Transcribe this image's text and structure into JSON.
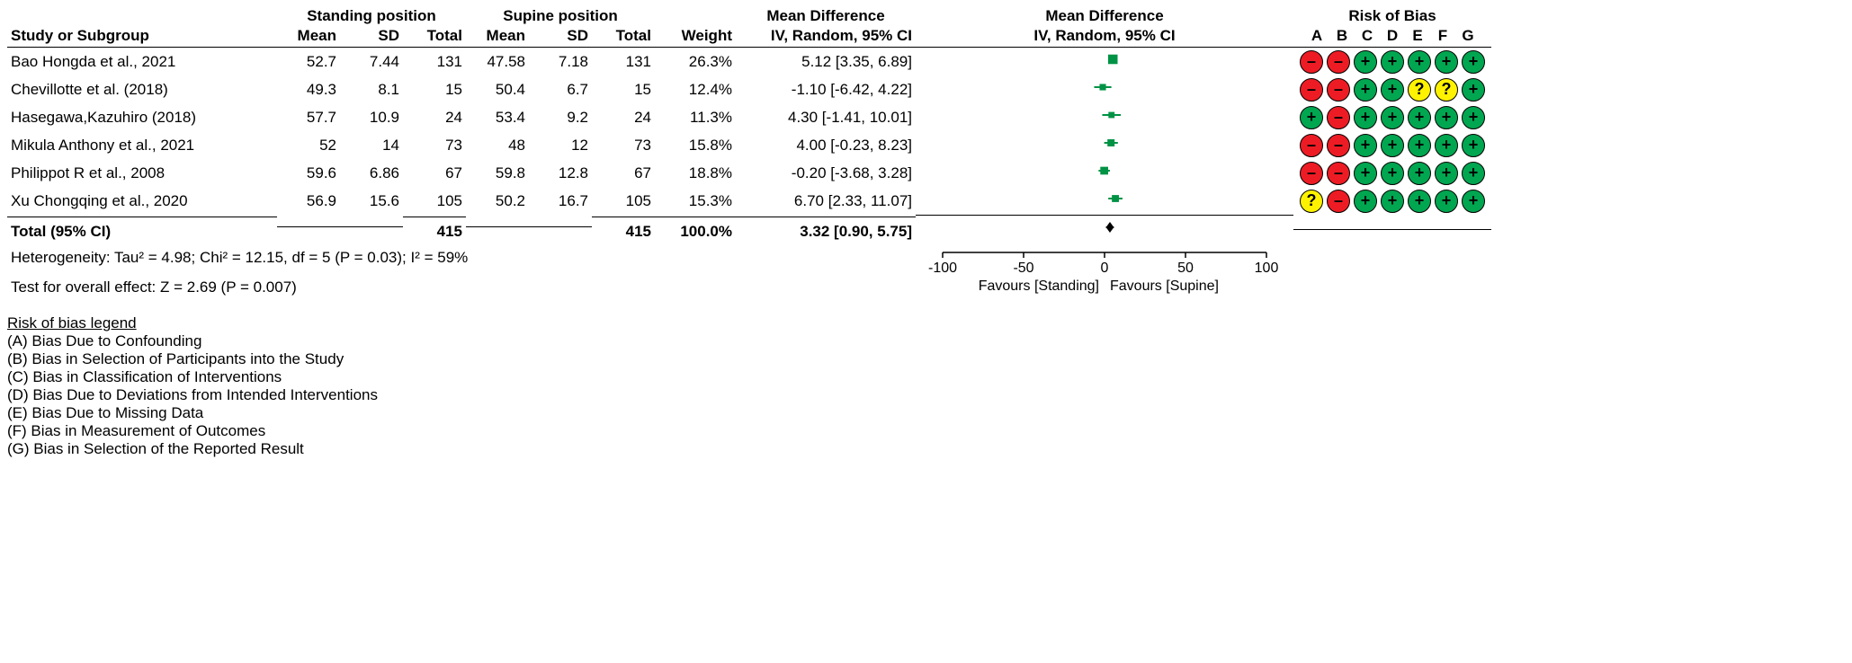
{
  "headers": {
    "study": "Study or Subgroup",
    "group1": "Standing position",
    "group2": "Supine position",
    "mean": "Mean",
    "sd": "SD",
    "total": "Total",
    "weight": "Weight",
    "md": "Mean Difference",
    "mdmethod": "IV, Random, 95% CI",
    "rob": "Risk of Bias",
    "robcols": [
      "A",
      "B",
      "C",
      "D",
      "E",
      "F",
      "G"
    ]
  },
  "axis": {
    "min": -100,
    "max": 100,
    "ticks": [
      -100,
      -50,
      0,
      50,
      100
    ],
    "leftLabel": "Favours [Standing]",
    "rightLabel": "Favours [Supine]"
  },
  "studies": [
    {
      "name": "Bao Hongda et al., 2021",
      "m1": "52.7",
      "sd1": "7.44",
      "n1": "131",
      "m2": "47.58",
      "sd2": "7.18",
      "n2": "131",
      "w": "26.3%",
      "md": "5.12 [3.35, 6.89]",
      "pe": 5.12,
      "lo": 3.35,
      "hi": 6.89,
      "rob": [
        "high",
        "high",
        "low",
        "low",
        "low",
        "low",
        "low"
      ]
    },
    {
      "name": "Chevillotte et al. (2018)",
      "m1": "49.3",
      "sd1": "8.1",
      "n1": "15",
      "m2": "50.4",
      "sd2": "6.7",
      "n2": "15",
      "w": "12.4%",
      "md": "-1.10 [-6.42, 4.22]",
      "pe": -1.1,
      "lo": -6.42,
      "hi": 4.22,
      "rob": [
        "high",
        "high",
        "low",
        "low",
        "unc",
        "unc",
        "low"
      ]
    },
    {
      "name": "Hasegawa,Kazuhiro (2018)",
      "m1": "57.7",
      "sd1": "10.9",
      "n1": "24",
      "m2": "53.4",
      "sd2": "9.2",
      "n2": "24",
      "w": "11.3%",
      "md": "4.30 [-1.41, 10.01]",
      "pe": 4.3,
      "lo": -1.41,
      "hi": 10.01,
      "rob": [
        "low",
        "high",
        "low",
        "low",
        "low",
        "low",
        "low"
      ]
    },
    {
      "name": "Mikula  Anthony et al., 2021",
      "m1": "52",
      "sd1": "14",
      "n1": "73",
      "m2": "48",
      "sd2": "12",
      "n2": "73",
      "w": "15.8%",
      "md": "4.00 [-0.23, 8.23]",
      "pe": 4.0,
      "lo": -0.23,
      "hi": 8.23,
      "rob": [
        "high",
        "high",
        "low",
        "low",
        "low",
        "low",
        "low"
      ]
    },
    {
      "name": "Philippot R et al., 2008",
      "m1": "59.6",
      "sd1": "6.86",
      "n1": "67",
      "m2": "59.8",
      "sd2": "12.8",
      "n2": "67",
      "w": "18.8%",
      "md": "-0.20 [-3.68, 3.28]",
      "pe": -0.2,
      "lo": -3.68,
      "hi": 3.28,
      "rob": [
        "high",
        "high",
        "low",
        "low",
        "low",
        "low",
        "low"
      ]
    },
    {
      "name": "Xu Chongqing et al., 2020",
      "m1": "56.9",
      "sd1": "15.6",
      "n1": "105",
      "m2": "50.2",
      "sd2": "16.7",
      "n2": "105",
      "w": "15.3%",
      "md": "6.70 [2.33, 11.07]",
      "pe": 6.7,
      "lo": 2.33,
      "hi": 11.07,
      "rob": [
        "unc",
        "high",
        "low",
        "low",
        "low",
        "low",
        "low"
      ]
    }
  ],
  "total": {
    "label": "Total (95% CI)",
    "n1": "415",
    "n2": "415",
    "w": "100.0%",
    "md": "3.32 [0.90, 5.75]",
    "pe": 3.32,
    "lo": 0.9,
    "hi": 5.75
  },
  "hetero": "Heterogeneity: Tau² = 4.98; Chi² = 12.15, df = 5 (P = 0.03); I² = 59%",
  "overall": "Test for overall effect: Z = 2.69 (P = 0.007)",
  "legendTitle": "Risk of bias legend",
  "legend": [
    "(A) Bias Due to Confounding",
    "(B) Bias in Selection of Participants into the Study",
    "(C) Bias in Classification of Interventions",
    "(D) Bias Due to Deviations from Intended Interventions",
    "(E) Bias Due to Missing Data",
    "(F) Bias in Measurement of Outcomes",
    "(G) Bias in Selection of the Reported Result"
  ],
  "colors": {
    "low": "#00a650",
    "high": "#ed1c24",
    "unc": "#fff200",
    "marker": "#009245"
  }
}
